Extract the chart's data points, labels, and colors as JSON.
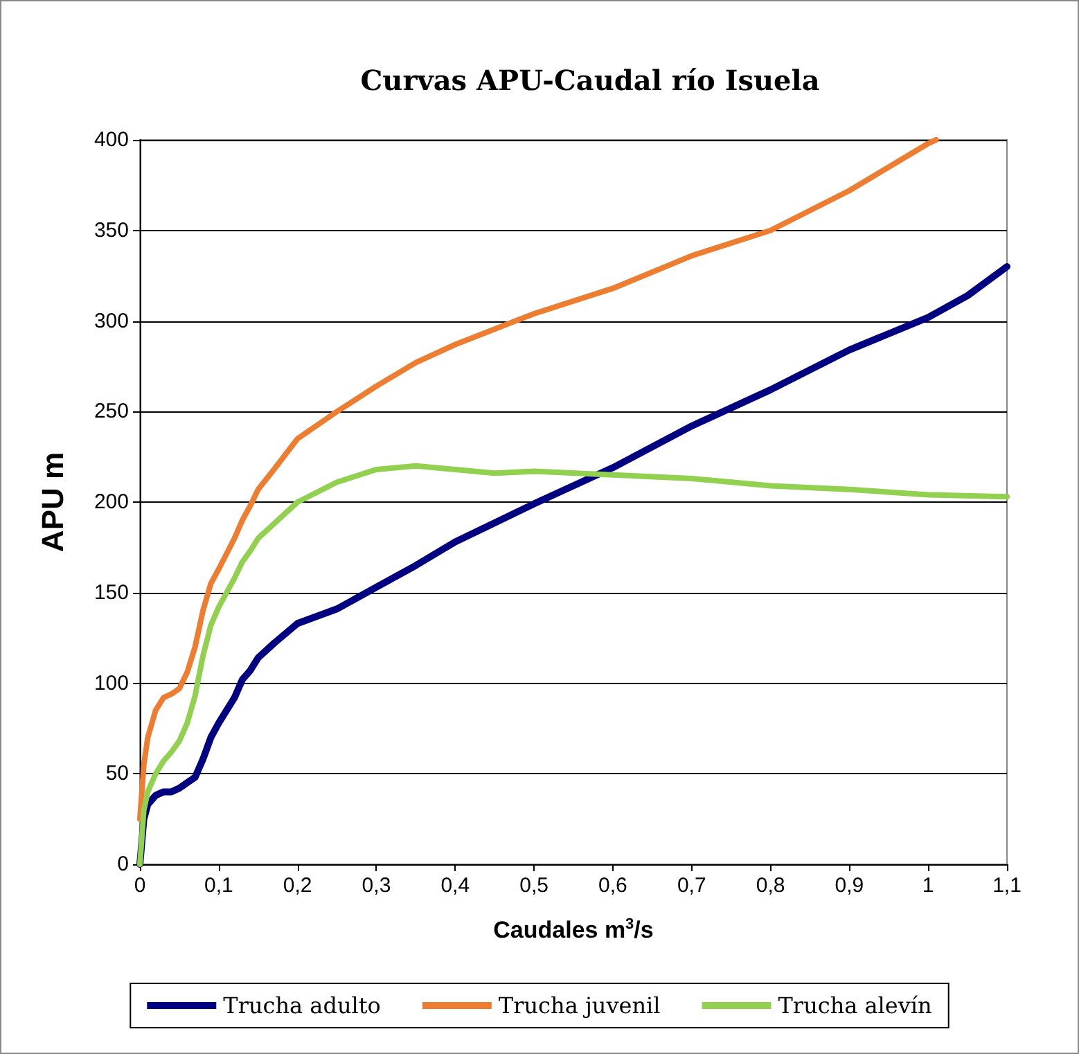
{
  "chart_data": {
    "type": "line",
    "title": "Curvas APU-Caudal río Isuela",
    "xlabel": "Caudales m$^{3}$/s",
    "ylabel": "APU m",
    "xlim": [
      0,
      1.1
    ],
    "xticks": [
      {
        "value": 0,
        "label": "0"
      },
      {
        "value": 0.1,
        "label": "0,1"
      },
      {
        "value": 0.2,
        "label": "0,2"
      },
      {
        "value": 0.3,
        "label": "0,3"
      },
      {
        "value": 0.4,
        "label": "0,4"
      },
      {
        "value": 0.5,
        "label": "0,5"
      },
      {
        "value": 0.6,
        "label": "0,6"
      },
      {
        "value": 0.7,
        "label": "0,7"
      },
      {
        "value": 0.8,
        "label": "0,8"
      },
      {
        "value": 0.9,
        "label": "0,9"
      },
      {
        "value": 1,
        "label": "1"
      },
      {
        "value": 1.1,
        "label": "1,1"
      }
    ],
    "ylim": [
      0,
      400
    ],
    "yticks": [
      0,
      50,
      100,
      150,
      200,
      250,
      300,
      350,
      400
    ],
    "grid": "y",
    "legend": "bottom",
    "marker": "none",
    "line_style": "solid",
    "series": [
      {
        "name": "Trucha adulto",
        "color": "#000080",
        "x": [
          0,
          0.005,
          0.01,
          0.02,
          0.03,
          0.04,
          0.05,
          0.07,
          0.08,
          0.09,
          0.1,
          0.12,
          0.13,
          0.14,
          0.15,
          0.17,
          0.2,
          0.25,
          0.3,
          0.35,
          0.4,
          0.5,
          0.6,
          0.7,
          0.8,
          0.9,
          1.0,
          1.05,
          1.1
        ],
        "values": [
          0,
          25,
          33,
          38,
          40,
          40,
          42,
          48,
          58,
          70,
          78,
          92,
          102,
          107,
          114,
          122,
          133,
          141,
          153,
          165,
          178,
          199,
          219,
          242,
          262,
          284,
          302,
          314,
          330
        ]
      },
      {
        "name": "Trucha juvenil",
        "color": "#ed7d31",
        "x": [
          0,
          0.005,
          0.01,
          0.02,
          0.03,
          0.04,
          0.05,
          0.06,
          0.07,
          0.08,
          0.09,
          0.1,
          0.12,
          0.13,
          0.14,
          0.15,
          0.17,
          0.2,
          0.25,
          0.3,
          0.35,
          0.4,
          0.5,
          0.6,
          0.7,
          0.8,
          0.9,
          1.0,
          1.01
        ],
        "values": [
          25,
          55,
          70,
          85,
          92,
          94,
          97,
          106,
          120,
          140,
          155,
          163,
          180,
          190,
          198,
          207,
          218,
          235,
          250,
          264,
          277,
          287,
          304,
          318,
          336,
          350,
          372,
          398,
          400
        ]
      },
      {
        "name": "Trucha alevín",
        "color": "#92d050",
        "x": [
          0,
          0.005,
          0.01,
          0.02,
          0.03,
          0.04,
          0.05,
          0.06,
          0.07,
          0.08,
          0.09,
          0.1,
          0.12,
          0.13,
          0.14,
          0.15,
          0.17,
          0.2,
          0.25,
          0.3,
          0.35,
          0.4,
          0.45,
          0.5,
          0.6,
          0.7,
          0.8,
          0.9,
          1.0,
          1.1
        ],
        "values": [
          0,
          30,
          40,
          50,
          57,
          62,
          68,
          78,
          93,
          115,
          132,
          142,
          158,
          167,
          173,
          180,
          188,
          200,
          211,
          218,
          220,
          218,
          216,
          217,
          215,
          213,
          209,
          207,
          204,
          203
        ]
      }
    ]
  }
}
